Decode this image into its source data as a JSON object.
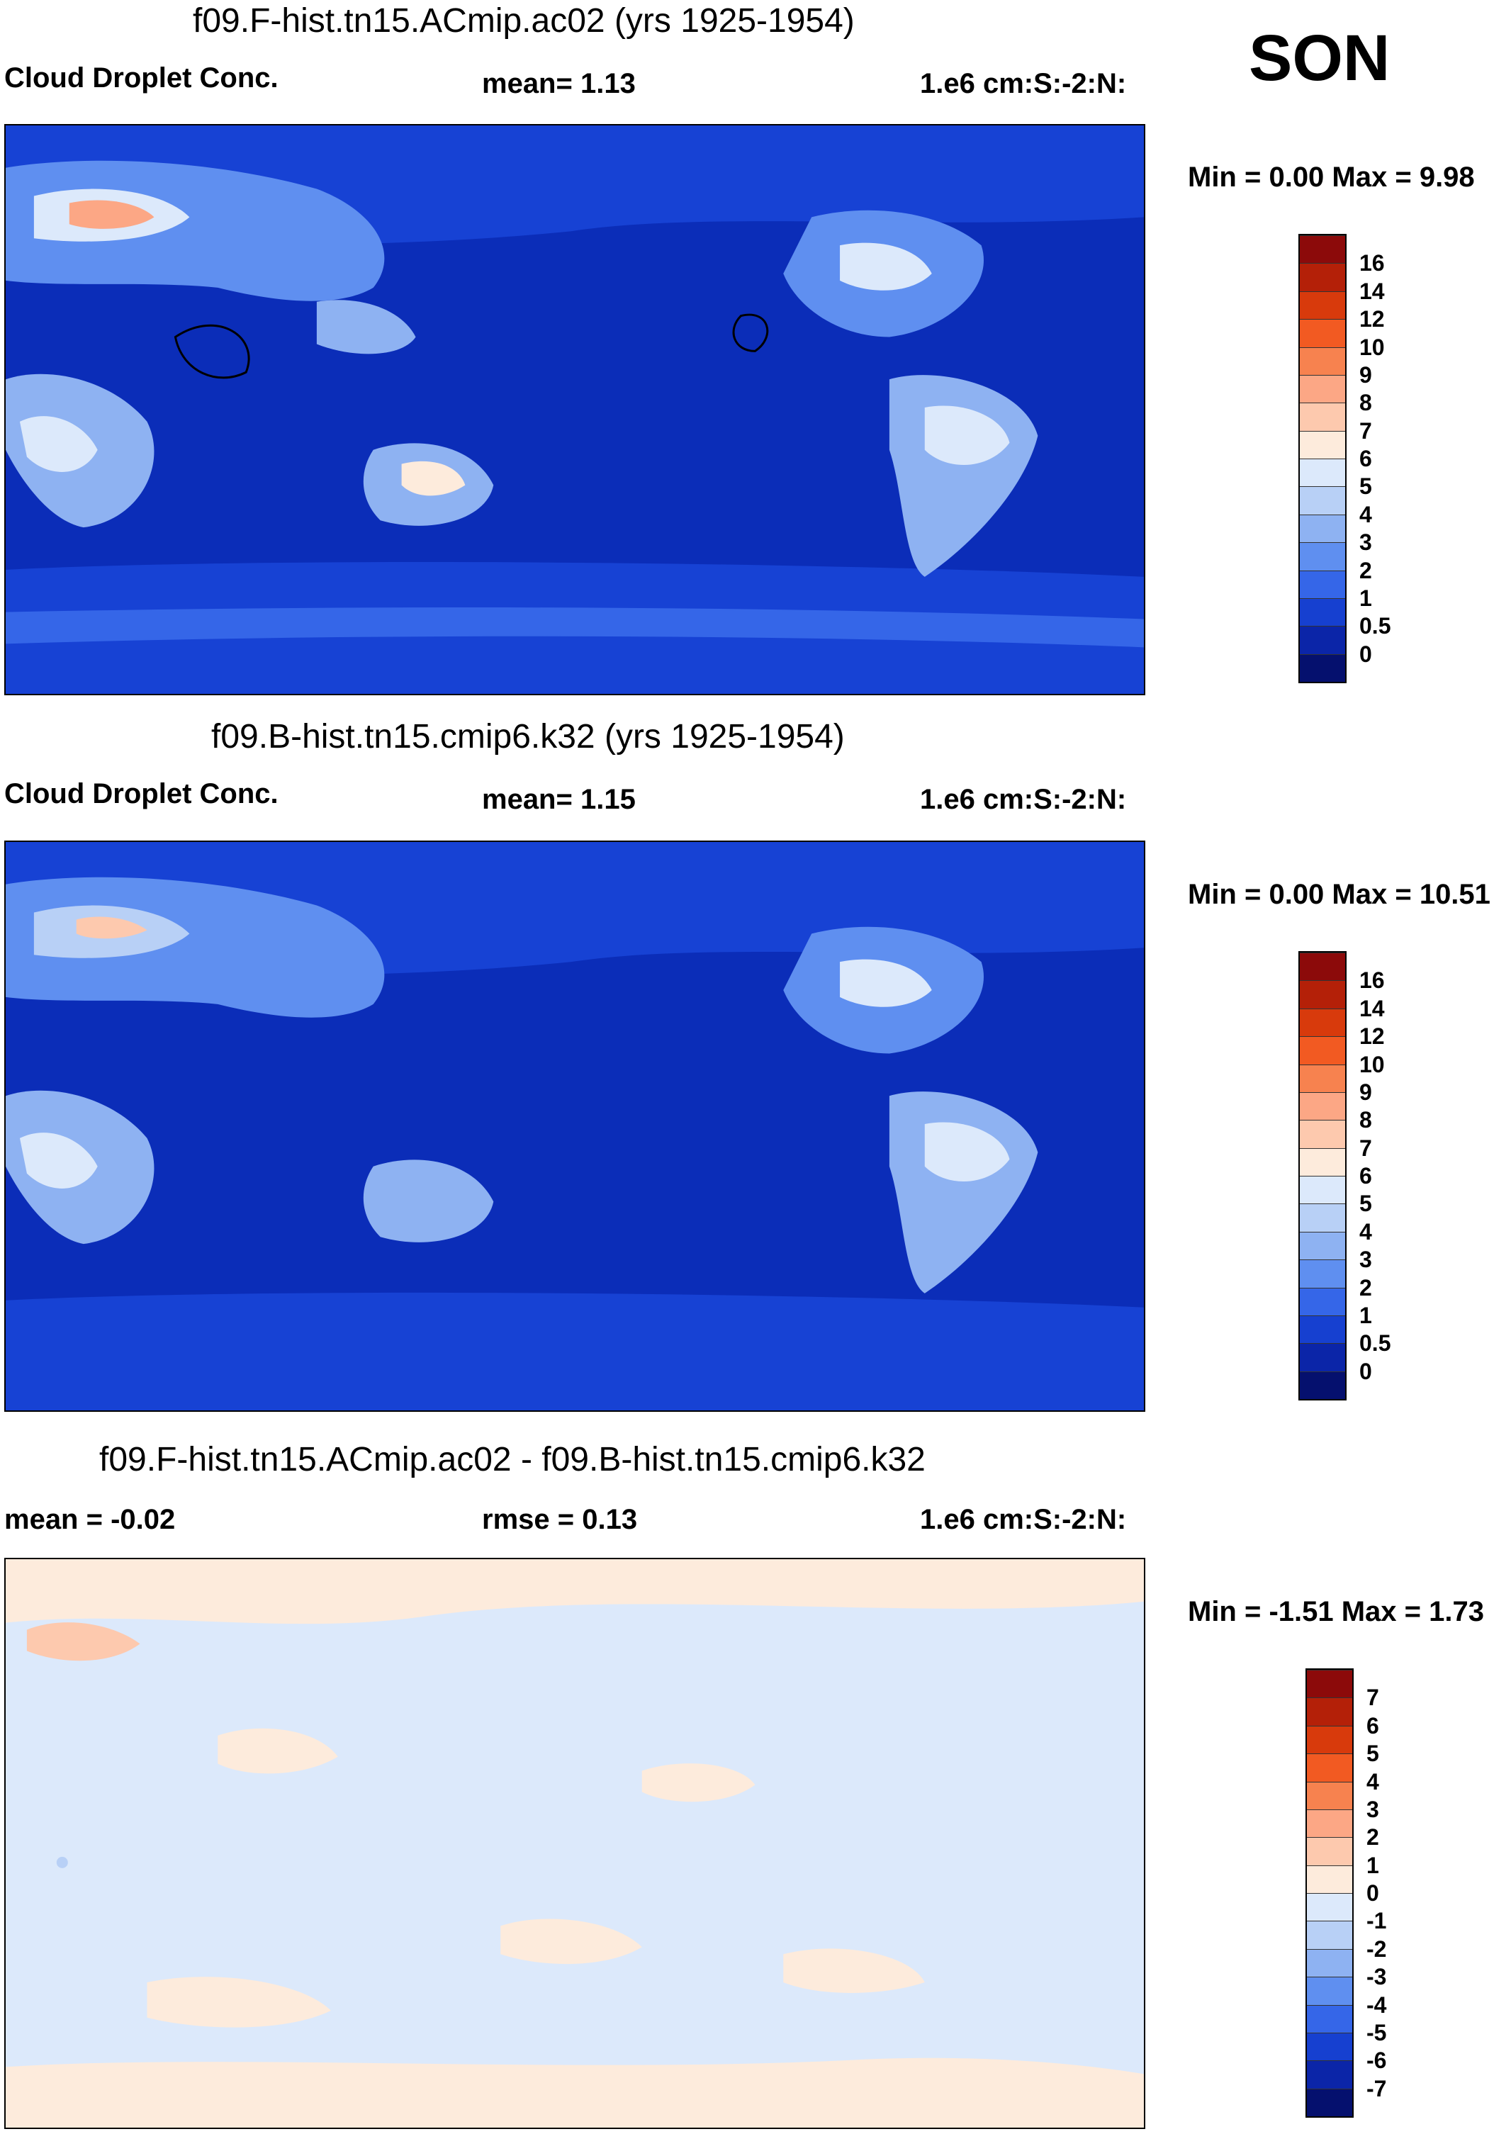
{
  "season": "SON",
  "panels": [
    {
      "title": "f09.F-hist.tn15.ACmip.ac02 (yrs 1925-1954)",
      "left_label": "Cloud Droplet Conc.",
      "center_label": "mean=   1.13",
      "right_label": "1.e6 cm:S:-2:N:",
      "minmax": "Min =   0.00 Max =   9.98",
      "colorbar_ticks": [
        "16",
        "14",
        "12",
        "10",
        "9",
        "8",
        "7",
        "6",
        "5",
        "4",
        "3",
        "2",
        "1",
        "0.5",
        "0"
      ],
      "colorbar_colors": [
        "#8c0a0a",
        "#b42008",
        "#d83a0c",
        "#f25a22",
        "#f7824f",
        "#fca785",
        "#fdc9ae",
        "#fdebdc",
        "#dce9fb",
        "#b8d0f6",
        "#8eb2f2",
        "#5f8ff0",
        "#3566e8",
        "#1640d0",
        "#0b25a8",
        "#05106e"
      ],
      "field_colors": {
        "ocean_base": "#0b2db8",
        "ocean_mid": "#1742d4",
        "ocean_light": "#3566e8",
        "land_light": "#8eb2f2",
        "land_pale": "#dce9fb",
        "hot": "#fca785"
      }
    },
    {
      "title": "f09.B-hist.tn15.cmip6.k32 (yrs 1925-1954)",
      "left_label": "Cloud Droplet Conc.",
      "center_label": "mean=   1.15",
      "right_label": "1.e6 cm:S:-2:N:",
      "minmax": "Min =   0.00 Max =  10.51",
      "colorbar_ticks": [
        "16",
        "14",
        "12",
        "10",
        "9",
        "8",
        "7",
        "6",
        "5",
        "4",
        "3",
        "2",
        "1",
        "0.5",
        "0"
      ],
      "colorbar_colors": [
        "#8c0a0a",
        "#b42008",
        "#d83a0c",
        "#f25a22",
        "#f7824f",
        "#fca785",
        "#fdc9ae",
        "#fdebdc",
        "#dce9fb",
        "#b8d0f6",
        "#8eb2f2",
        "#5f8ff0",
        "#3566e8",
        "#1640d0",
        "#0b25a8",
        "#05106e"
      ],
      "field_colors": {
        "ocean_base": "#0b2db8",
        "ocean_mid": "#1742d4",
        "ocean_light": "#3566e8",
        "land_light": "#8eb2f2",
        "land_pale": "#dce9fb",
        "hot": "#fca785"
      }
    },
    {
      "title": "f09.F-hist.tn15.ACmip.ac02 - f09.B-hist.tn15.cmip6.k32",
      "left_label": "mean =  -0.02",
      "center_label": "rmse =    0.13",
      "right_label": "1.e6 cm:S:-2:N:",
      "minmax": "Min =  -1.51 Max =   1.73",
      "colorbar_ticks": [
        "7",
        "6",
        "5",
        "4",
        "3",
        "2",
        "1",
        "0",
        "-1",
        "-2",
        "-3",
        "-4",
        "-5",
        "-6",
        "-7"
      ],
      "colorbar_colors": [
        "#8c0a0a",
        "#b42008",
        "#d83a0c",
        "#f25a22",
        "#f7824f",
        "#fca785",
        "#fdc9ae",
        "#fdebdc",
        "#dce9fb",
        "#b8d0f6",
        "#8eb2f2",
        "#5f8ff0",
        "#3566e8",
        "#1640d0",
        "#0b25a8",
        "#05106e"
      ],
      "field_colors": {
        "neg": "#dce9fb",
        "pos": "#fdebdc",
        "pos2": "#fdc9ae",
        "neg2": "#b8d0f6"
      }
    }
  ]
}
